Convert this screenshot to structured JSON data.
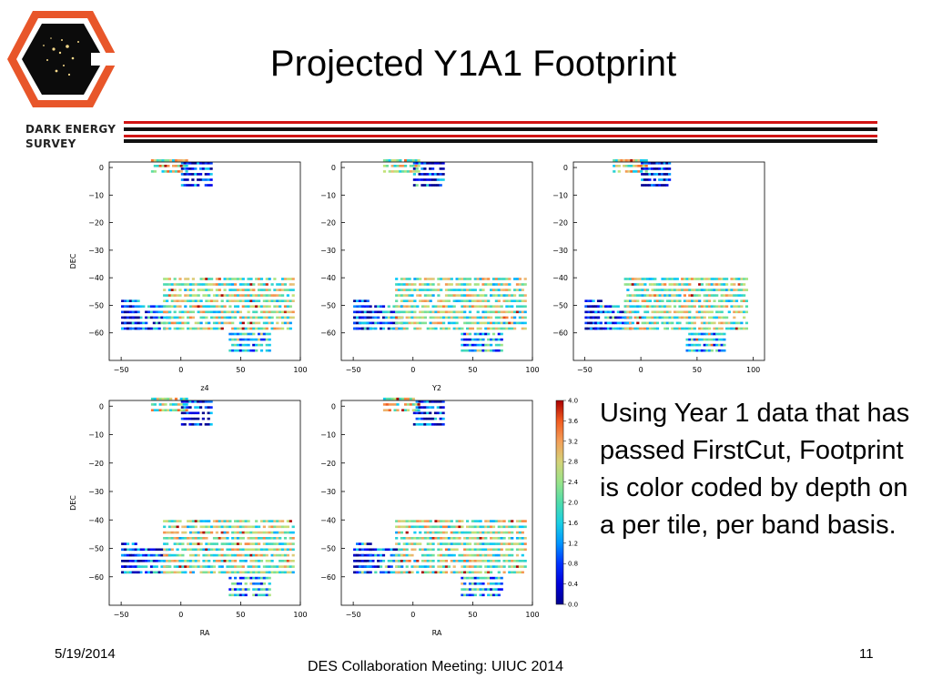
{
  "slide": {
    "title": "Projected Y1A1 Footprint",
    "logo_text_line1": "DARK ENERGY",
    "logo_text_line2": "SURVEY",
    "body_text": "Using Year 1 data that has passed FirstCut, Footprint is color coded by depth on a per tile, per band basis.",
    "footer_date": "5/19/2014",
    "footer_center": "DES Collaboration Meeting: UIUC 2014",
    "page_number": "11"
  },
  "colors": {
    "accent_red": "#d11414",
    "rule_black": "#111111",
    "logo_frame": "#e8562a",
    "logo_bg": "#0b0b0b"
  },
  "chart_data": [
    {
      "type": "heatmap",
      "title": "",
      "xlabel": "z4",
      "ylabel": "DEC",
      "xlim": [
        -60,
        100
      ],
      "ylim": [
        -70,
        2
      ],
      "xticks": [
        "−50",
        "0",
        "50",
        "100"
      ],
      "yticks": [
        "0",
        "−10",
        "−20",
        "−30",
        "−40",
        "−50",
        "−60"
      ]
    },
    {
      "type": "heatmap",
      "title": "",
      "xlabel": "Y2",
      "ylabel": "",
      "xlim": [
        -60,
        100
      ],
      "ylim": [
        -70,
        2
      ],
      "xticks": [
        "−50",
        "0",
        "50",
        "100"
      ],
      "yticks": [
        "0",
        "−10",
        "−20",
        "−30",
        "−40",
        "−50",
        "−60"
      ]
    },
    {
      "type": "heatmap",
      "title": "",
      "xlabel": "",
      "ylabel": "",
      "xlim": [
        -60,
        110
      ],
      "ylim": [
        -70,
        2
      ],
      "xticks": [
        "−50",
        "0",
        "50",
        "100"
      ],
      "yticks": [
        "0",
        "−10",
        "−20",
        "−30",
        "−40",
        "−50",
        "−60"
      ]
    },
    {
      "type": "heatmap",
      "title": "",
      "xlabel": "RA",
      "ylabel": "DEC",
      "xlim": [
        -60,
        100
      ],
      "ylim": [
        -70,
        2
      ],
      "xticks": [
        "−50",
        "0",
        "50",
        "100"
      ],
      "yticks": [
        "0",
        "−10",
        "−20",
        "−30",
        "−40",
        "−50",
        "−60"
      ]
    },
    {
      "type": "heatmap",
      "title": "",
      "xlabel": "RA",
      "ylabel": "",
      "xlim": [
        -60,
        100
      ],
      "ylim": [
        -70,
        2
      ],
      "xticks": [
        "−50",
        "0",
        "50",
        "100"
      ],
      "yticks": [
        "0",
        "−10",
        "−20",
        "−30",
        "−40",
        "−50",
        "−60"
      ]
    }
  ],
  "colorbar": {
    "ticks": [
      "4.0",
      "3.6",
      "3.2",
      "2.8",
      "2.4",
      "2.0",
      "1.6",
      "1.2",
      "0.8",
      "0.4",
      "0.0"
    ],
    "range": [
      0.0,
      4.0
    ]
  }
}
